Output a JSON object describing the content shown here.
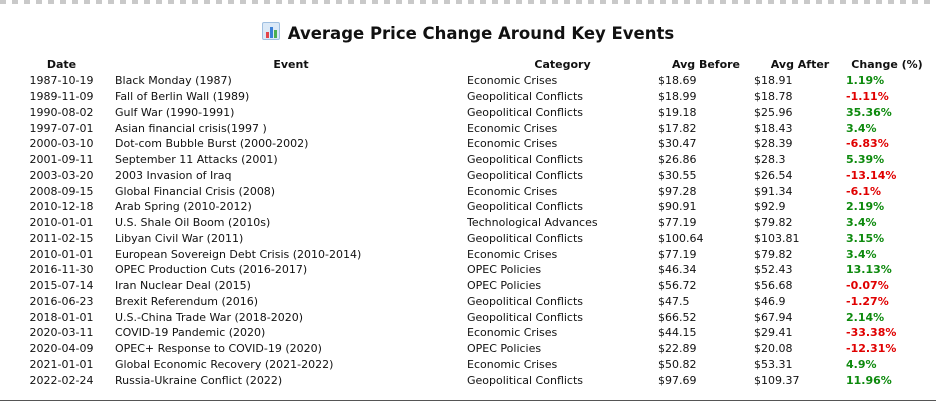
{
  "title": "Average Price Change Around Key Events",
  "title_icon": "bar-chart-icon",
  "colors": {
    "positive": "#0d8a0d",
    "negative": "#e00000"
  },
  "columns": [
    "Date",
    "Event",
    "Category",
    "Avg Before",
    "Avg After",
    "Change (%)"
  ],
  "rows": [
    {
      "date": "1987-10-19",
      "event": "Black Monday (1987)",
      "category": "Economic Crises",
      "before": "$18.69",
      "after": "$18.91",
      "change": "1.19%",
      "direction": "up"
    },
    {
      "date": "1989-11-09",
      "event": "Fall of Berlin Wall (1989)",
      "category": "Geopolitical Conflicts",
      "before": "$18.99",
      "after": "$18.78",
      "change": "-1.11%",
      "direction": "down"
    },
    {
      "date": "1990-08-02",
      "event": "Gulf War (1990-1991)",
      "category": "Geopolitical Conflicts",
      "before": "$19.18",
      "after": "$25.96",
      "change": "35.36%",
      "direction": "up"
    },
    {
      "date": "1997-07-01",
      "event": "Asian financial crisis(1997 )",
      "category": "Economic Crises",
      "before": "$17.82",
      "after": "$18.43",
      "change": "3.4%",
      "direction": "up"
    },
    {
      "date": "2000-03-10",
      "event": "Dot-com Bubble Burst (2000-2002)",
      "category": "Economic Crises",
      "before": "$30.47",
      "after": "$28.39",
      "change": "-6.83%",
      "direction": "down"
    },
    {
      "date": "2001-09-11",
      "event": "September 11 Attacks (2001)",
      "category": "Geopolitical Conflicts",
      "before": "$26.86",
      "after": "$28.3",
      "change": "5.39%",
      "direction": "up"
    },
    {
      "date": "2003-03-20",
      "event": "2003 Invasion of Iraq",
      "category": "Geopolitical Conflicts",
      "before": "$30.55",
      "after": "$26.54",
      "change": "-13.14%",
      "direction": "down"
    },
    {
      "date": "2008-09-15",
      "event": "Global Financial Crisis (2008)",
      "category": "Economic Crises",
      "before": "$97.28",
      "after": "$91.34",
      "change": "-6.1%",
      "direction": "down"
    },
    {
      "date": "2010-12-18",
      "event": "Arab Spring (2010-2012)",
      "category": "Geopolitical Conflicts",
      "before": "$90.91",
      "after": "$92.9",
      "change": "2.19%",
      "direction": "up"
    },
    {
      "date": "2010-01-01",
      "event": "U.S. Shale Oil Boom (2010s)",
      "category": "Technological Advances",
      "before": "$77.19",
      "after": "$79.82",
      "change": "3.4%",
      "direction": "up"
    },
    {
      "date": "2011-02-15",
      "event": "Libyan Civil War (2011)",
      "category": "Geopolitical Conflicts",
      "before": "$100.64",
      "after": "$103.81",
      "change": "3.15%",
      "direction": "up"
    },
    {
      "date": "2010-01-01",
      "event": "European Sovereign Debt Crisis (2010-2014)",
      "category": "Economic Crises",
      "before": "$77.19",
      "after": "$79.82",
      "change": "3.4%",
      "direction": "up"
    },
    {
      "date": "2016-11-30",
      "event": "OPEC Production Cuts (2016-2017)",
      "category": "OPEC Policies",
      "before": "$46.34",
      "after": "$52.43",
      "change": "13.13%",
      "direction": "up"
    },
    {
      "date": "2015-07-14",
      "event": "Iran Nuclear Deal (2015)",
      "category": "OPEC Policies",
      "before": "$56.72",
      "after": "$56.68",
      "change": "-0.07%",
      "direction": "down"
    },
    {
      "date": "2016-06-23",
      "event": "Brexit Referendum (2016)",
      "category": "Geopolitical Conflicts",
      "before": "$47.5",
      "after": "$46.9",
      "change": "-1.27%",
      "direction": "down"
    },
    {
      "date": "2018-01-01",
      "event": "U.S.-China Trade War (2018-2020)",
      "category": "Geopolitical Conflicts",
      "before": "$66.52",
      "after": "$67.94",
      "change": "2.14%",
      "direction": "up"
    },
    {
      "date": "2020-03-11",
      "event": "COVID-19 Pandemic (2020)",
      "category": "Economic Crises",
      "before": "$44.15",
      "after": "$29.41",
      "change": "-33.38%",
      "direction": "down"
    },
    {
      "date": "2020-04-09",
      "event": "OPEC+ Response to COVID-19 (2020)",
      "category": "OPEC Policies",
      "before": "$22.89",
      "after": "$20.08",
      "change": "-12.31%",
      "direction": "down"
    },
    {
      "date": "2021-01-01",
      "event": "Global Economic Recovery (2021-2022)",
      "category": "Economic Crises",
      "before": "$50.82",
      "after": "$53.31",
      "change": "4.9%",
      "direction": "up"
    },
    {
      "date": "2022-02-24",
      "event": "Russia-Ukraine Conflict (2022)",
      "category": "Geopolitical Conflicts",
      "before": "$97.69",
      "after": "$109.37",
      "change": "11.96%",
      "direction": "up"
    }
  ]
}
